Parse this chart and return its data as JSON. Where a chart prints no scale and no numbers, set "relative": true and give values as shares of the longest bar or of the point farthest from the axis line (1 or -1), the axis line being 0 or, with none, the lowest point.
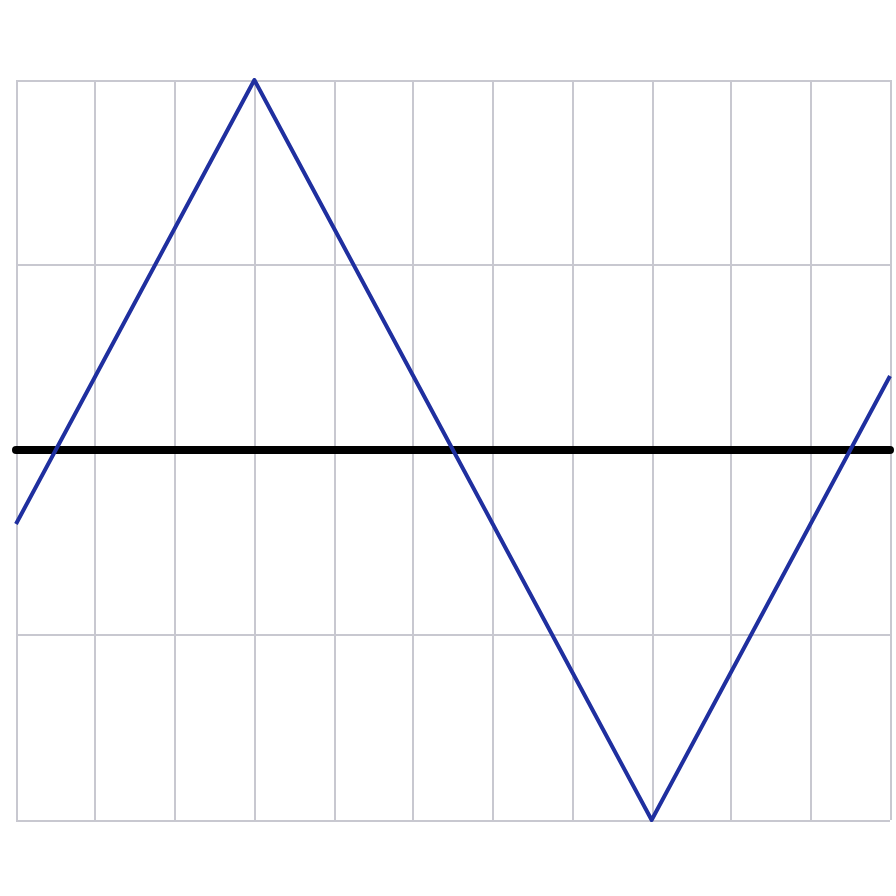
{
  "chart_data": {
    "type": "line",
    "relative": true,
    "grid": true,
    "marker": "none",
    "line_style": "solid",
    "categories": [
      null,
      null,
      null,
      null,
      null,
      null,
      null,
      null,
      null,
      null,
      null,
      null
    ],
    "series": [
      {
        "color": "#1f2f9f",
        "values": [
          -0.2,
          0.2,
          0.6,
          1.0,
          0.6,
          0.2,
          -0.2,
          -0.6,
          -1.0,
          -0.6,
          -0.2,
          0.2
        ]
      }
    ]
  }
}
